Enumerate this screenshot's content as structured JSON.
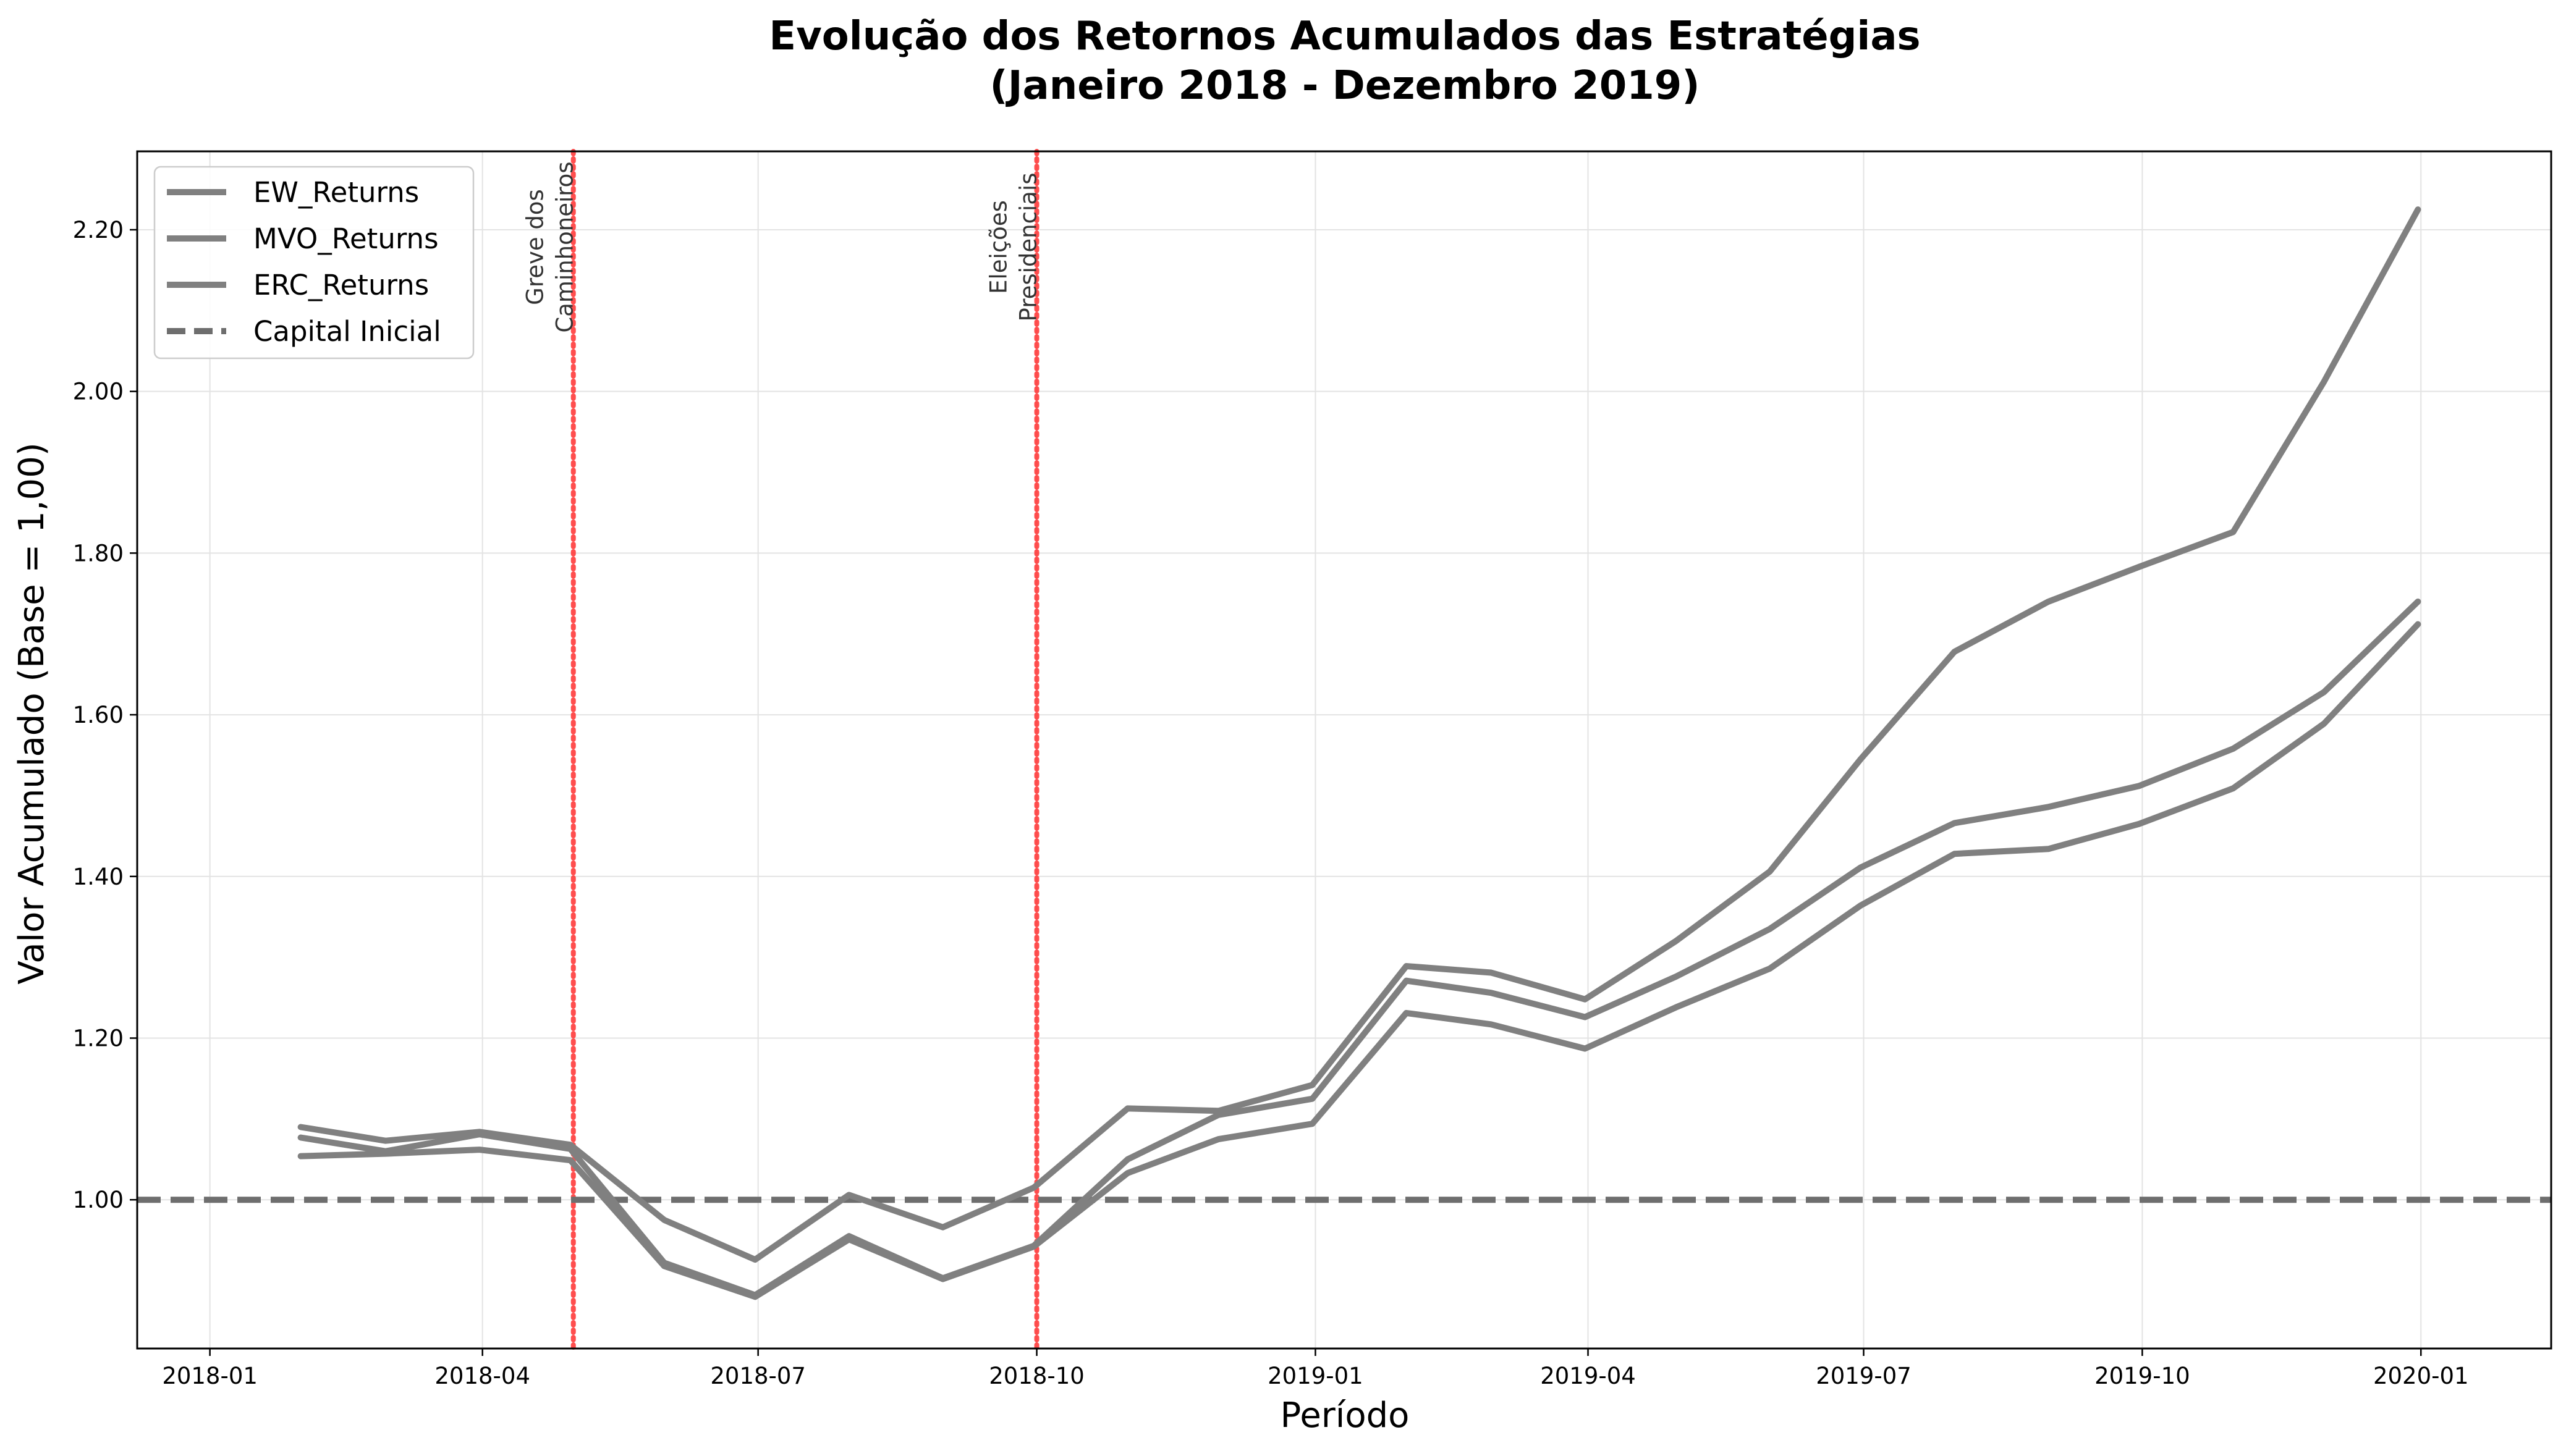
{
  "chart_data": {
    "type": "line",
    "title_lines": [
      "Evolução dos Retornos Acumulados das Estratégias",
      "(Janeiro 2018 - Dezembro 2019)"
    ],
    "xlabel": "Período",
    "ylabel": "Valor Acumulado (Base = 1,00)",
    "xlim": [
      "2017-12-08",
      "2020-02-13"
    ],
    "ylim": [
      0.816,
      2.297
    ],
    "x_ticks": [
      "2018-01",
      "2018-04",
      "2018-07",
      "2018-10",
      "2019-01",
      "2019-04",
      "2019-07",
      "2019-10",
      "2020-01"
    ],
    "y_ticks": [
      "1.00",
      "1.20",
      "1.40",
      "1.60",
      "1.80",
      "2.00",
      "2.20"
    ],
    "grid": true,
    "legend_position": "top-left",
    "x": [
      "2018-01-31",
      "2018-02-28",
      "2018-03-31",
      "2018-04-30",
      "2018-05-31",
      "2018-06-30",
      "2018-07-31",
      "2018-08-31",
      "2018-09-30",
      "2018-10-31",
      "2018-11-30",
      "2018-12-31",
      "2019-01-31",
      "2019-02-28",
      "2019-03-31",
      "2019-04-30",
      "2019-05-31",
      "2019-06-30",
      "2019-07-31",
      "2019-08-31",
      "2019-09-30",
      "2019-10-31",
      "2019-11-30",
      "2019-12-31"
    ],
    "series": [
      {
        "name": "EW_Returns",
        "values": [
          1.077,
          1.06,
          1.081,
          1.063,
          0.922,
          0.882,
          0.955,
          0.903,
          0.943,
          1.05,
          1.105,
          1.125,
          1.271,
          1.256,
          1.226,
          1.276,
          1.335,
          1.411,
          1.466,
          1.486,
          1.512,
          1.558,
          1.628,
          1.74
        ],
        "color": "#808080"
      },
      {
        "name": "MVO_Returns",
        "values": [
          1.09,
          1.073,
          1.084,
          1.068,
          0.975,
          0.926,
          1.006,
          0.966,
          1.015,
          1.113,
          1.11,
          1.142,
          1.289,
          1.281,
          1.248,
          1.32,
          1.406,
          1.545,
          1.678,
          1.74,
          1.783,
          1.826,
          2.012,
          2.225
        ],
        "color": "#808080"
      },
      {
        "name": "ERC_Returns",
        "values": [
          1.054,
          1.057,
          1.062,
          1.049,
          0.918,
          0.88,
          0.951,
          0.902,
          0.942,
          1.033,
          1.075,
          1.094,
          1.231,
          1.217,
          1.187,
          1.238,
          1.286,
          1.364,
          1.428,
          1.434,
          1.465,
          1.509,
          1.589,
          1.712
        ],
        "color": "#808080"
      }
    ],
    "baseline": {
      "name": "Capital Inicial",
      "value": 1.0,
      "style": "dashed",
      "color": "#6e6e6e"
    },
    "events": [
      {
        "date": "2018-05-01",
        "label_lines": [
          "Greve dos",
          "Caminhoneiros"
        ],
        "color": "#ff3b3b"
      },
      {
        "date": "2018-10-01",
        "label_lines": [
          "Eleições",
          "Presidenciais"
        ],
        "color": "#ff3b3b"
      }
    ]
  }
}
